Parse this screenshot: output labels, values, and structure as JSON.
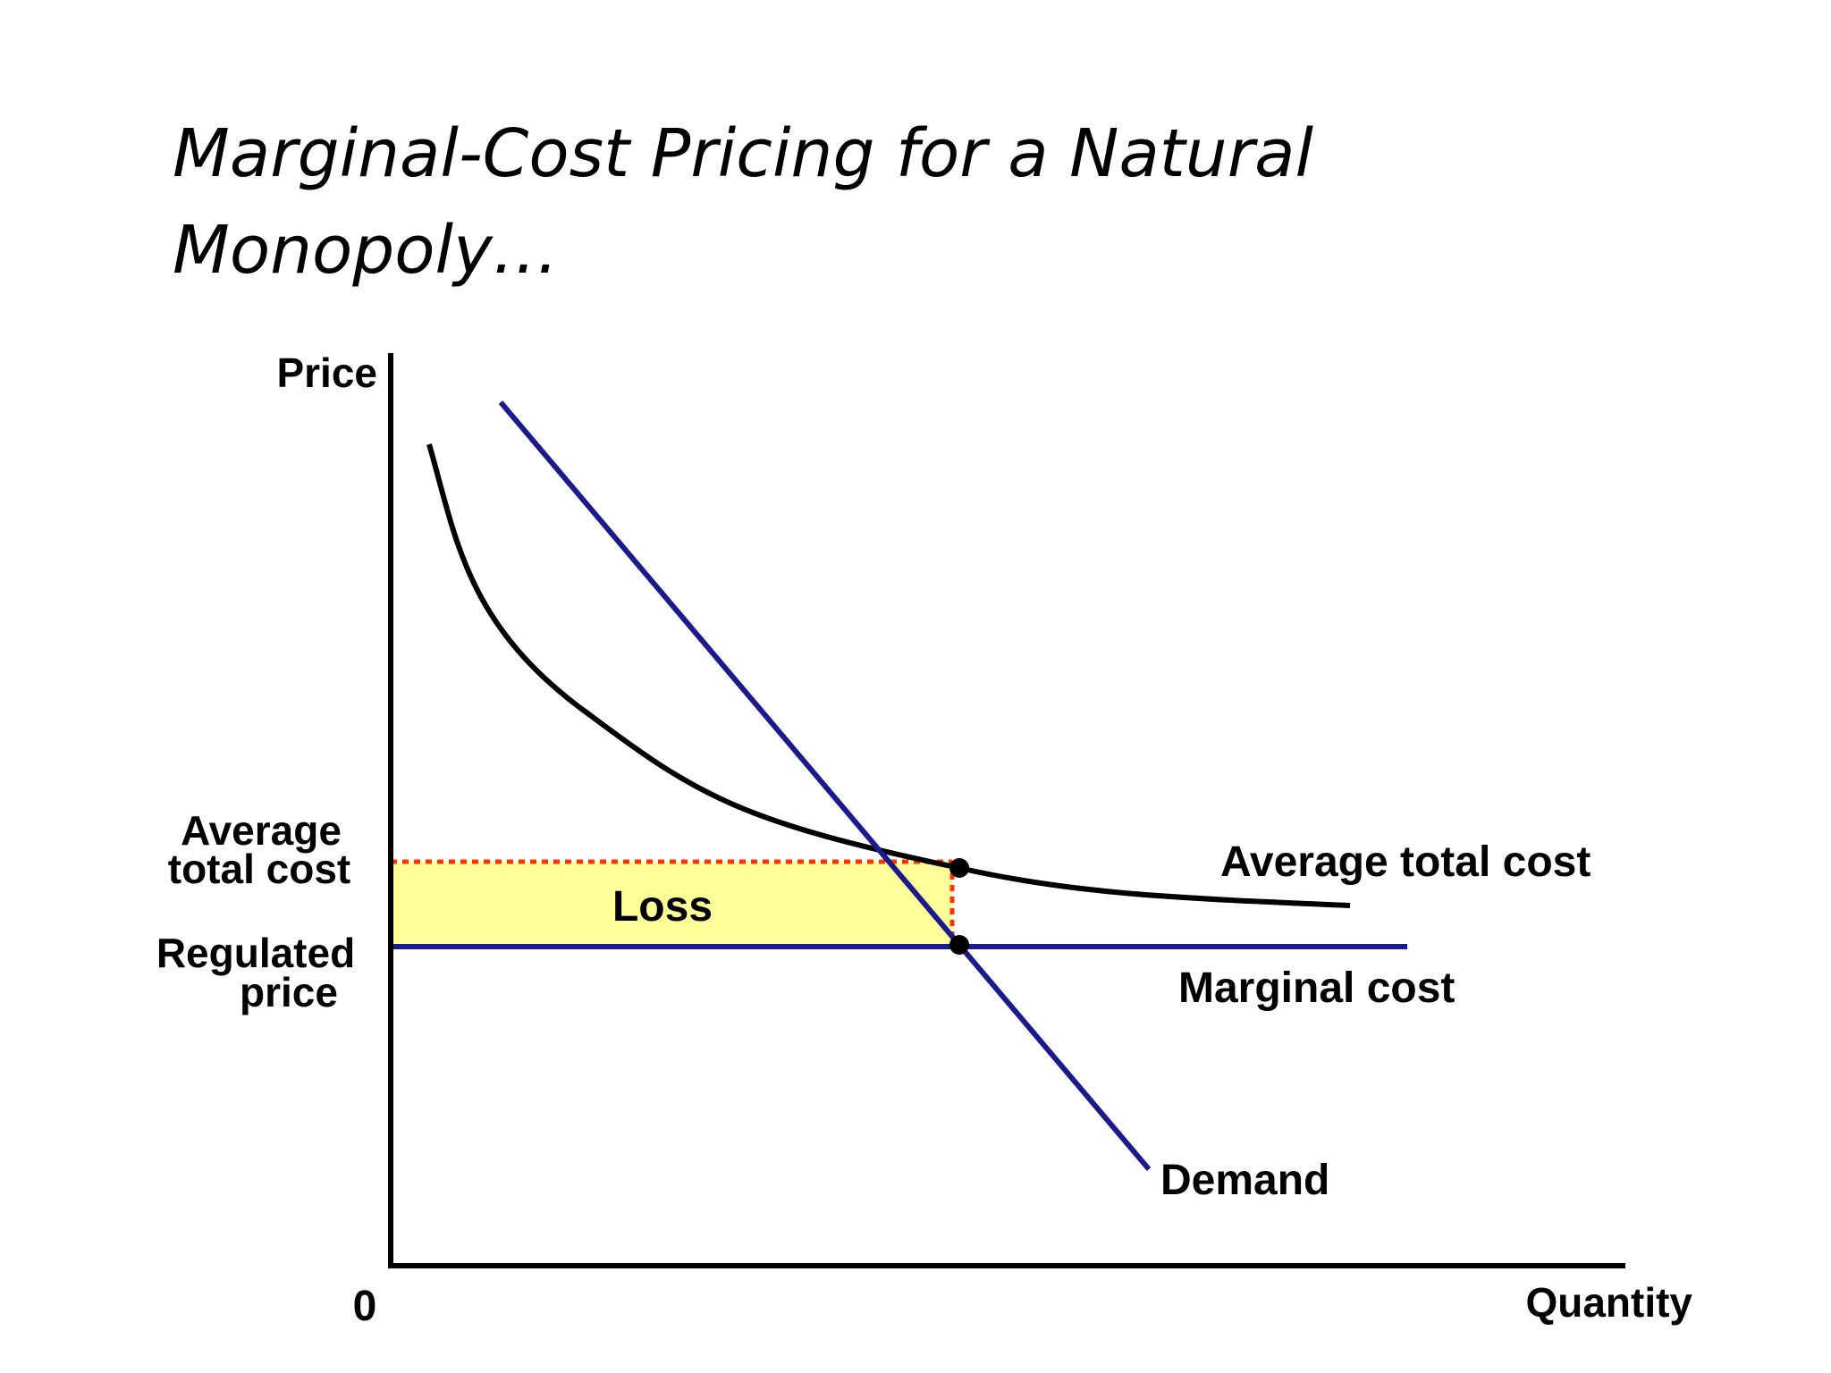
{
  "title": {
    "line1": "Marginal-Cost Pricing for a Natural",
    "line2": "Monopoly…"
  },
  "axes": {
    "y_label": "Price",
    "x_label": "Quantity",
    "origin_label": "0"
  },
  "levels": {
    "atc_label_line1": "Average",
    "atc_label_line2": "total cost",
    "regulated_label_line1": "Regulated",
    "regulated_label_line2": "price"
  },
  "curves": {
    "atc": "Average total cost",
    "marginal_cost": "Marginal cost",
    "demand": "Demand"
  },
  "loss_label": "Loss",
  "colors": {
    "demand": "#1a1a8c",
    "marginal_cost": "#1a1a8c",
    "atc": "#000000",
    "loss_fill": "#ffff99",
    "dotted_guides": "#ff3300"
  }
}
